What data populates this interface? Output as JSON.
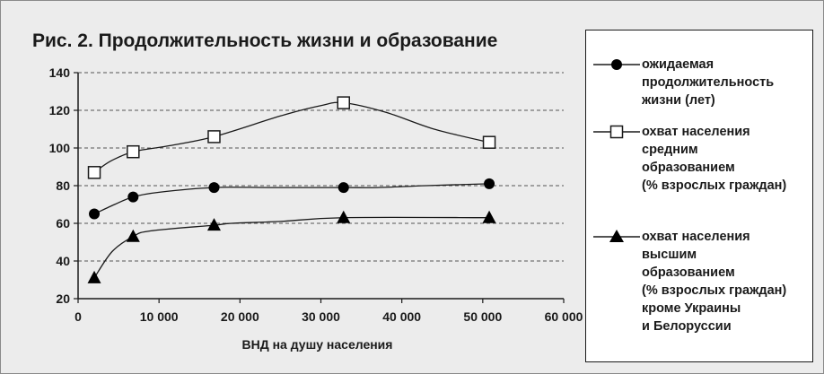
{
  "title": "Рис. 2.  Продолжительность жизни и образование",
  "chart_data": {
    "type": "line",
    "title": "Рис. 2.  Продолжительность жизни и образование",
    "xlabel": "ВНД на душу населения",
    "ylabel": "",
    "xlim": [
      0,
      60000
    ],
    "ylim": [
      20,
      140
    ],
    "x_ticks": [
      0,
      10000,
      20000,
      30000,
      40000,
      50000,
      60000
    ],
    "x_tick_labels": [
      "0",
      "10 000",
      "20 000",
      "30 000",
      "40 000",
      "50 000",
      "60 000"
    ],
    "y_ticks": [
      20,
      40,
      60,
      80,
      100,
      120,
      140
    ],
    "y_tick_labels": [
      "20",
      "40",
      "60",
      "80",
      "100",
      "120",
      "140"
    ],
    "grid": "horizontal dashed",
    "legend_position": "right",
    "series": [
      {
        "name": "ожидаемая\nпродолжительность\nжизни (лет)",
        "marker": "filled-circle",
        "points": [
          [
            2000,
            65
          ],
          [
            6800,
            74
          ],
          [
            16800,
            79
          ],
          [
            32800,
            79
          ],
          [
            50800,
            81
          ]
        ],
        "curve": [
          [
            2000,
            65
          ],
          [
            4500,
            70
          ],
          [
            6800,
            74
          ],
          [
            10000,
            76.5
          ],
          [
            16800,
            79
          ],
          [
            24000,
            79
          ],
          [
            32800,
            79
          ],
          [
            37000,
            79
          ],
          [
            43000,
            80
          ],
          [
            50800,
            81
          ]
        ]
      },
      {
        "name": "охват населения\nсредним\nобразованием\n(% взрослых граждан)",
        "marker": "open-square",
        "points": [
          [
            2000,
            87
          ],
          [
            6800,
            98
          ],
          [
            16800,
            106
          ],
          [
            32800,
            124
          ],
          [
            50800,
            103
          ]
        ],
        "curve": [
          [
            2000,
            87
          ],
          [
            4000,
            93
          ],
          [
            6800,
            98
          ],
          [
            11000,
            101
          ],
          [
            16800,
            106
          ],
          [
            25000,
            117
          ],
          [
            30000,
            122.5
          ],
          [
            32800,
            124
          ],
          [
            38000,
            119
          ],
          [
            44000,
            110
          ],
          [
            50800,
            103
          ]
        ]
      },
      {
        "name": "охват населения\nвысшим\nобразованием\n(% взрослых граждан)\nкроме Украины\nи Белоруссии",
        "marker": "filled-triangle",
        "points": [
          [
            2000,
            31
          ],
          [
            6800,
            53
          ],
          [
            16800,
            59
          ],
          [
            32800,
            63
          ],
          [
            50800,
            63
          ]
        ],
        "curve": [
          [
            2000,
            31
          ],
          [
            4200,
            45
          ],
          [
            6800,
            53
          ],
          [
            9000,
            56
          ],
          [
            16800,
            59
          ],
          [
            19000,
            60
          ],
          [
            25000,
            61
          ],
          [
            32800,
            63
          ],
          [
            50800,
            63
          ]
        ]
      }
    ]
  }
}
